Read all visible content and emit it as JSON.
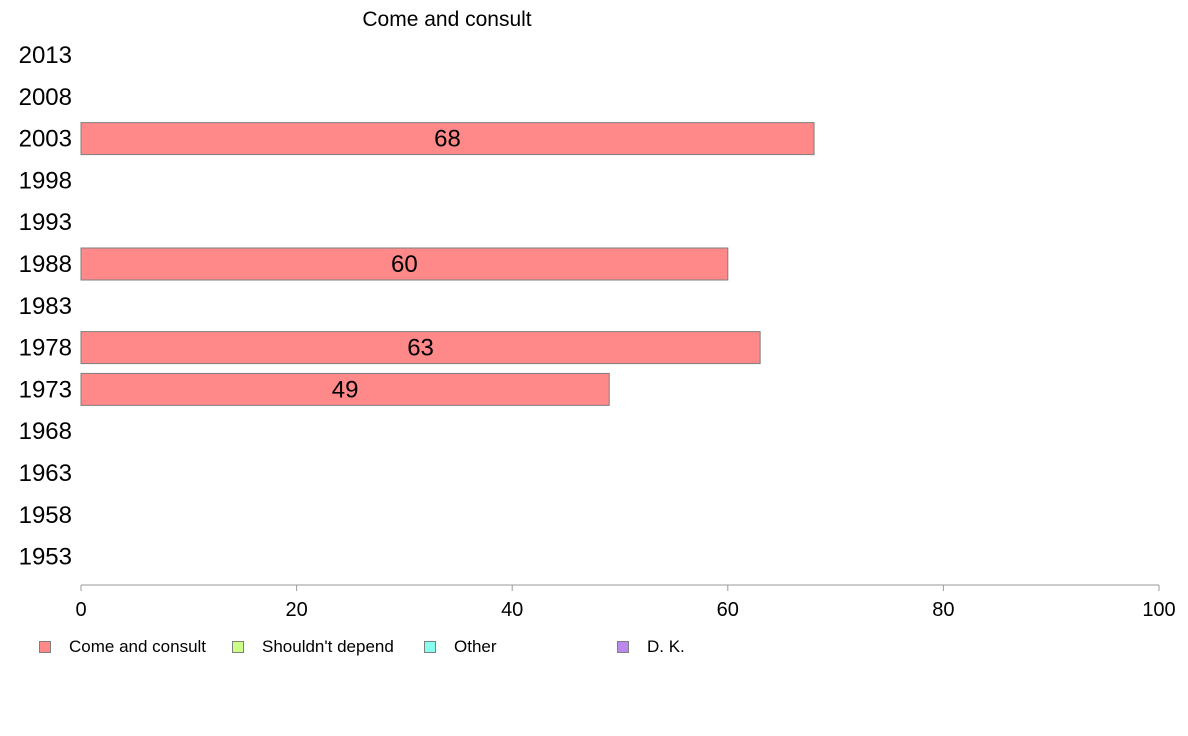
{
  "chart_data": {
    "type": "bar",
    "orientation": "horizontal",
    "title": "Come and consult",
    "categories": [
      "2013",
      "2008",
      "2003",
      "1998",
      "1993",
      "1988",
      "1983",
      "1978",
      "1973",
      "1968",
      "1963",
      "1958",
      "1953"
    ],
    "series": [
      {
        "name": "Come and consult",
        "color": "#ff8888",
        "values": [
          null,
          null,
          68,
          null,
          null,
          60,
          null,
          63,
          49,
          null,
          null,
          null,
          null
        ],
        "data_labels": [
          "",
          "",
          "68",
          "",
          "",
          "60",
          "",
          "63",
          "49",
          "",
          "",
          "",
          ""
        ]
      }
    ],
    "xlim": [
      0,
      100
    ],
    "x_ticks": [
      "0",
      "20",
      "40",
      "60",
      "80",
      "100"
    ],
    "grid": false,
    "legend_position": "bottom-left"
  },
  "legend": {
    "items": [
      {
        "label": "Come and consult",
        "color": "#ff8888"
      },
      {
        "label": "Shouldn't depend",
        "color": "#ccff88"
      },
      {
        "label": "Other",
        "color": "#88ffee"
      },
      {
        "label": "D. K.",
        "color": "#bb88ee"
      }
    ]
  }
}
